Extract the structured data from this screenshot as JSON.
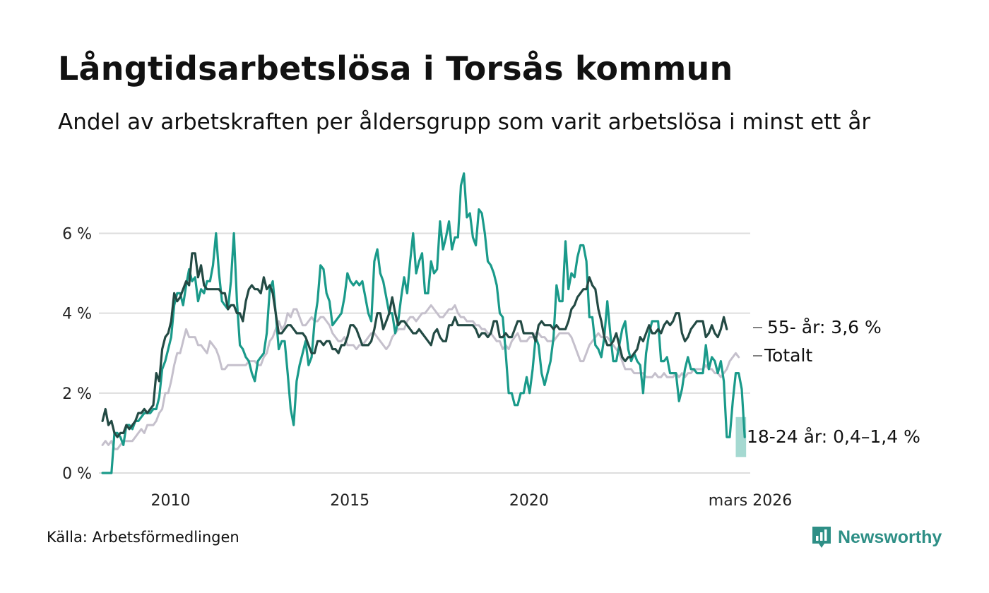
{
  "title": "Långtidsarbetslösa i Torsås kommun",
  "subtitle": "Andel av arbetskraften per åldersgrupp som varit arbetslösa i minst ett år",
  "source": "Källa: Arbetsförmedlingen",
  "brand": {
    "name": "Newsworthy",
    "icon": "newsworthy-logo-icon"
  },
  "colors": {
    "youth": "#1a9a8a",
    "youth_band": "#8fd0c6",
    "older": "#234a44",
    "total": "#c5c0cc",
    "grid": "#dddddd",
    "brand": "#2e8f86"
  },
  "chart_data": {
    "type": "line",
    "x_start": 2008.1,
    "x_step": 0.08333,
    "x_range": [
      2008.0,
      2026.17
    ],
    "ylim": [
      0,
      7.6
    ],
    "y_ticks": [
      0,
      2,
      4,
      6
    ],
    "y_tick_labels": [
      "0 %",
      "2 %",
      "4 %",
      "6 %"
    ],
    "x_ticks": [
      2010,
      2015,
      2020,
      2026.17
    ],
    "x_tick_labels": [
      "2010",
      "2015",
      "2020",
      "mars 2026"
    ],
    "series": [
      {
        "key": "total",
        "name": "Totalt",
        "label": "Totalt",
        "values": [
          0.7,
          0.8,
          0.7,
          0.8,
          0.6,
          0.6,
          0.7,
          0.8,
          0.8,
          0.8,
          0.8,
          0.9,
          1.0,
          1.1,
          1.0,
          1.2,
          1.2,
          1.2,
          1.3,
          1.5,
          1.6,
          2.0,
          2.0,
          2.3,
          2.7,
          3.0,
          3.0,
          3.3,
          3.6,
          3.4,
          3.4,
          3.4,
          3.2,
          3.2,
          3.1,
          3.0,
          3.3,
          3.2,
          3.1,
          2.9,
          2.6,
          2.6,
          2.7,
          2.7,
          2.7,
          2.7,
          2.7,
          2.7,
          2.7,
          2.8,
          2.8,
          2.8,
          2.7,
          2.7,
          2.9,
          3.0,
          3.3,
          3.4,
          3.6,
          3.8,
          3.6,
          3.7,
          4.0,
          3.9,
          4.1,
          4.1,
          3.9,
          3.7,
          3.7,
          3.8,
          3.9,
          3.8,
          3.8,
          3.9,
          3.9,
          3.8,
          3.7,
          3.5,
          3.4,
          3.3,
          3.3,
          3.4,
          3.2,
          3.2,
          3.2,
          3.1,
          3.2,
          3.2,
          3.3,
          3.4,
          3.5,
          3.5,
          3.4,
          3.3,
          3.2,
          3.1,
          3.2,
          3.4,
          3.5,
          3.6,
          3.6,
          3.6,
          3.8,
          3.9,
          3.9,
          3.8,
          3.9,
          4.0,
          4.0,
          4.1,
          4.2,
          4.1,
          4.0,
          3.9,
          3.9,
          4.0,
          4.1,
          4.1,
          4.2,
          4.0,
          3.9,
          3.9,
          3.8,
          3.8,
          3.8,
          3.7,
          3.7,
          3.6,
          3.6,
          3.5,
          3.5,
          3.4,
          3.3,
          3.3,
          3.1,
          3.2,
          3.1,
          3.3,
          3.4,
          3.5,
          3.3,
          3.3,
          3.3,
          3.4,
          3.4,
          3.5,
          3.5,
          3.4,
          3.4,
          3.3,
          3.3,
          3.3,
          3.4,
          3.5,
          3.5,
          3.5,
          3.5,
          3.4,
          3.2,
          3.0,
          2.8,
          2.8,
          3.0,
          3.2,
          3.3,
          3.4,
          3.5,
          3.4,
          3.4,
          3.4,
          3.3,
          3.2,
          3.1,
          3.0,
          2.8,
          2.6,
          2.6,
          2.6,
          2.5,
          2.5,
          2.5,
          2.5,
          2.4,
          2.4,
          2.4,
          2.5,
          2.4,
          2.4,
          2.5,
          2.4,
          2.4,
          2.4,
          2.5,
          2.4,
          2.5,
          2.4,
          2.5,
          2.5,
          2.6,
          2.6,
          2.6,
          2.6,
          2.7,
          2.6,
          2.6,
          2.5,
          2.5,
          2.4,
          2.5,
          2.6,
          2.8,
          2.9,
          3.0,
          2.9
        ]
      },
      {
        "key": "youth",
        "name": "18-24 år",
        "label": "18-24 år: 0,4–1,4 %",
        "values": [
          0.0,
          0.0,
          0.0,
          0.0,
          1.0,
          1.0,
          0.9,
          0.7,
          1.2,
          1.2,
          1.1,
          1.3,
          1.3,
          1.4,
          1.5,
          1.5,
          1.5,
          1.6,
          1.6,
          1.9,
          2.6,
          2.8,
          3.1,
          3.4,
          4.2,
          4.5,
          4.5,
          4.2,
          4.7,
          5.1,
          4.8,
          4.9,
          4.3,
          4.6,
          4.5,
          4.8,
          4.8,
          5.2,
          6.0,
          5.0,
          4.3,
          4.2,
          4.1,
          4.8,
          6.0,
          4.3,
          3.2,
          3.1,
          2.9,
          2.8,
          2.5,
          2.3,
          2.8,
          2.9,
          3.0,
          3.5,
          4.6,
          4.8,
          4.0,
          3.1,
          3.3,
          3.3,
          2.5,
          1.6,
          1.2,
          2.3,
          2.7,
          3.0,
          3.3,
          2.7,
          2.9,
          3.8,
          4.3,
          5.2,
          5.1,
          4.5,
          4.3,
          3.7,
          3.8,
          3.9,
          4.0,
          4.4,
          5.0,
          4.8,
          4.7,
          4.8,
          4.7,
          4.8,
          4.4,
          4.0,
          3.8,
          5.3,
          5.6,
          5.0,
          4.8,
          4.4,
          4.0,
          4.0,
          3.5,
          3.8,
          4.4,
          4.9,
          4.5,
          5.3,
          6.0,
          5.0,
          5.3,
          5.5,
          4.5,
          4.5,
          5.3,
          5.0,
          5.1,
          6.3,
          5.6,
          5.9,
          6.3,
          5.6,
          5.9,
          5.9,
          7.2,
          7.5,
          6.4,
          6.5,
          5.9,
          5.7,
          6.6,
          6.5,
          6.0,
          5.3,
          5.2,
          5.0,
          4.7,
          4.0,
          3.9,
          3.0,
          2.0,
          2.0,
          1.7,
          1.7,
          2.0,
          2.0,
          2.4,
          2.0,
          2.6,
          3.4,
          3.2,
          2.5,
          2.2,
          2.5,
          2.8,
          3.4,
          4.7,
          4.3,
          4.3,
          5.8,
          4.6,
          5.0,
          4.9,
          5.4,
          5.7,
          5.7,
          5.3,
          3.9,
          3.9,
          3.2,
          3.1,
          2.9,
          3.4,
          4.3,
          3.5,
          2.8,
          2.8,
          3.2,
          3.6,
          3.8,
          3.1,
          2.8,
          3.0,
          2.8,
          2.7,
          2.0,
          3.0,
          3.5,
          3.8,
          3.8,
          3.8,
          2.8,
          2.8,
          2.9,
          2.5,
          2.5,
          2.5,
          1.8,
          2.1,
          2.6,
          2.9,
          2.6,
          2.6,
          2.5,
          2.5,
          2.5,
          3.2,
          2.6,
          2.9,
          2.8,
          2.5,
          2.8,
          2.3,
          0.9,
          0.9,
          1.8,
          2.5,
          2.5,
          2.1,
          0.9
        ],
        "band_low": 0.4,
        "band_high": 1.4
      },
      {
        "key": "older",
        "name": "55- år",
        "label": "55- år: 3,6 %",
        "values": [
          1.3,
          1.6,
          1.2,
          1.3,
          1.0,
          0.9,
          1.0,
          1.0,
          1.2,
          1.1,
          1.2,
          1.3,
          1.5,
          1.5,
          1.6,
          1.5,
          1.6,
          1.7,
          2.5,
          2.3,
          3.1,
          3.4,
          3.5,
          3.8,
          4.5,
          4.3,
          4.4,
          4.6,
          4.8,
          4.7,
          5.5,
          5.5,
          4.9,
          5.2,
          4.7,
          4.6,
          4.6,
          4.6,
          4.6,
          4.6,
          4.5,
          4.5,
          4.1,
          4.2,
          4.2,
          4.0,
          4.0,
          3.8,
          4.3,
          4.6,
          4.7,
          4.6,
          4.6,
          4.5,
          4.9,
          4.6,
          4.7,
          4.5,
          4.0,
          3.5,
          3.5,
          3.6,
          3.7,
          3.7,
          3.6,
          3.5,
          3.5,
          3.5,
          3.4,
          3.2,
          3.0,
          3.0,
          3.3,
          3.3,
          3.2,
          3.3,
          3.3,
          3.1,
          3.1,
          3.0,
          3.2,
          3.2,
          3.4,
          3.7,
          3.7,
          3.6,
          3.4,
          3.2,
          3.2,
          3.2,
          3.3,
          3.6,
          4.0,
          4.0,
          3.6,
          3.8,
          4.0,
          4.4,
          4.0,
          3.7,
          3.8,
          3.8,
          3.7,
          3.6,
          3.5,
          3.5,
          3.6,
          3.5,
          3.4,
          3.3,
          3.2,
          3.5,
          3.6,
          3.4,
          3.3,
          3.3,
          3.7,
          3.7,
          3.9,
          3.7,
          3.7,
          3.7,
          3.7,
          3.7,
          3.7,
          3.6,
          3.4,
          3.5,
          3.5,
          3.4,
          3.5,
          3.8,
          3.8,
          3.4,
          3.4,
          3.5,
          3.4,
          3.4,
          3.6,
          3.8,
          3.8,
          3.5,
          3.5,
          3.5,
          3.5,
          3.3,
          3.7,
          3.8,
          3.7,
          3.7,
          3.7,
          3.6,
          3.7,
          3.6,
          3.6,
          3.6,
          3.8,
          4.1,
          4.2,
          4.4,
          4.5,
          4.6,
          4.6,
          4.9,
          4.7,
          4.6,
          4.1,
          3.8,
          3.4,
          3.2,
          3.2,
          3.3,
          3.5,
          3.2,
          2.9,
          2.8,
          2.9,
          2.9,
          3.0,
          3.1,
          3.4,
          3.3,
          3.5,
          3.7,
          3.5,
          3.5,
          3.6,
          3.5,
          3.7,
          3.8,
          3.7,
          3.8,
          4.0,
          4.0,
          3.5,
          3.3,
          3.4,
          3.6,
          3.7,
          3.8,
          3.8,
          3.8,
          3.4,
          3.5,
          3.7,
          3.5,
          3.4,
          3.6,
          3.9,
          3.6
        ]
      }
    ],
    "legend": "inline-right"
  }
}
